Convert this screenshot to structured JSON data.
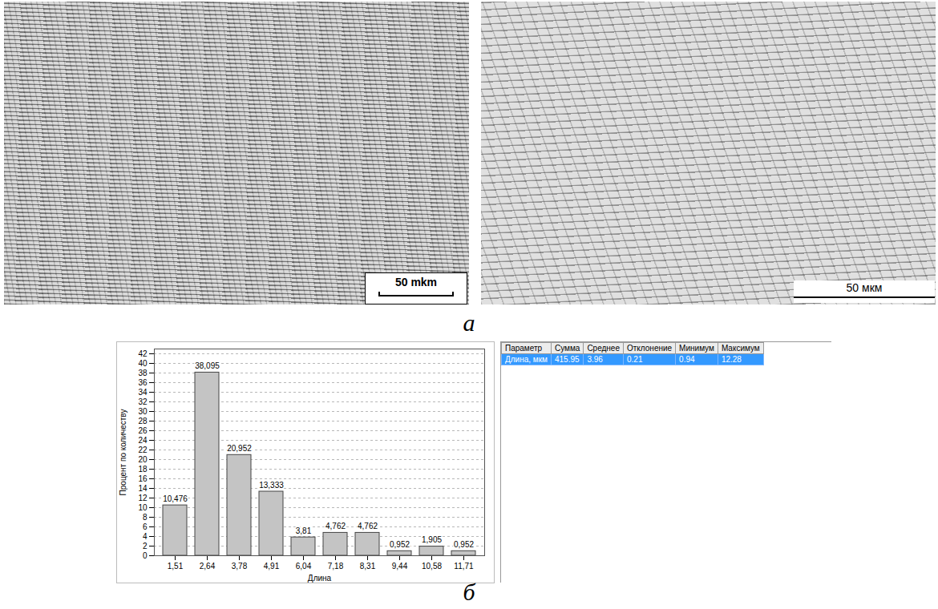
{
  "chart_data": {
    "type": "bar",
    "x_label": "Длина",
    "y_label": "Процент по количеству",
    "categories": [
      "1,51",
      "2,64",
      "3,78",
      "4,91",
      "6,04",
      "7,18",
      "8,31",
      "9,44",
      "10,58",
      "11,71"
    ],
    "values": [
      10.476,
      38.095,
      20.952,
      13.333,
      3.81,
      4.762,
      4.762,
      0.952,
      1.905,
      0.952
    ],
    "value_labels": [
      "10,476",
      "38,095",
      "20,952",
      "13,333",
      "3,81",
      "4,762",
      "4,762",
      "0,952",
      "1,905",
      "0,952"
    ],
    "data_labels": true,
    "color": "#c4c4c4",
    "ylim": [
      0,
      43
    ],
    "yticks": [
      0,
      2,
      4,
      6,
      8,
      10,
      12,
      14,
      16,
      18,
      20,
      22,
      24,
      26,
      28,
      30,
      32,
      34,
      36,
      38,
      40,
      42
    ],
    "grid": true
  },
  "figure": {
    "panels": [
      {
        "label": "а",
        "scale_bars": [
          "50 mkm",
          "50 мкм"
        ]
      },
      {
        "label": "б"
      }
    ],
    "table": {
      "header": [
        "Параметр",
        "Сумма",
        "Среднее",
        "Отклонение",
        "Минимум",
        "Максимум"
      ],
      "rows": [
        [
          "Длина, мкм",
          415.95,
          3.96,
          0.21,
          0.94,
          12.28
        ]
      ]
    }
  }
}
